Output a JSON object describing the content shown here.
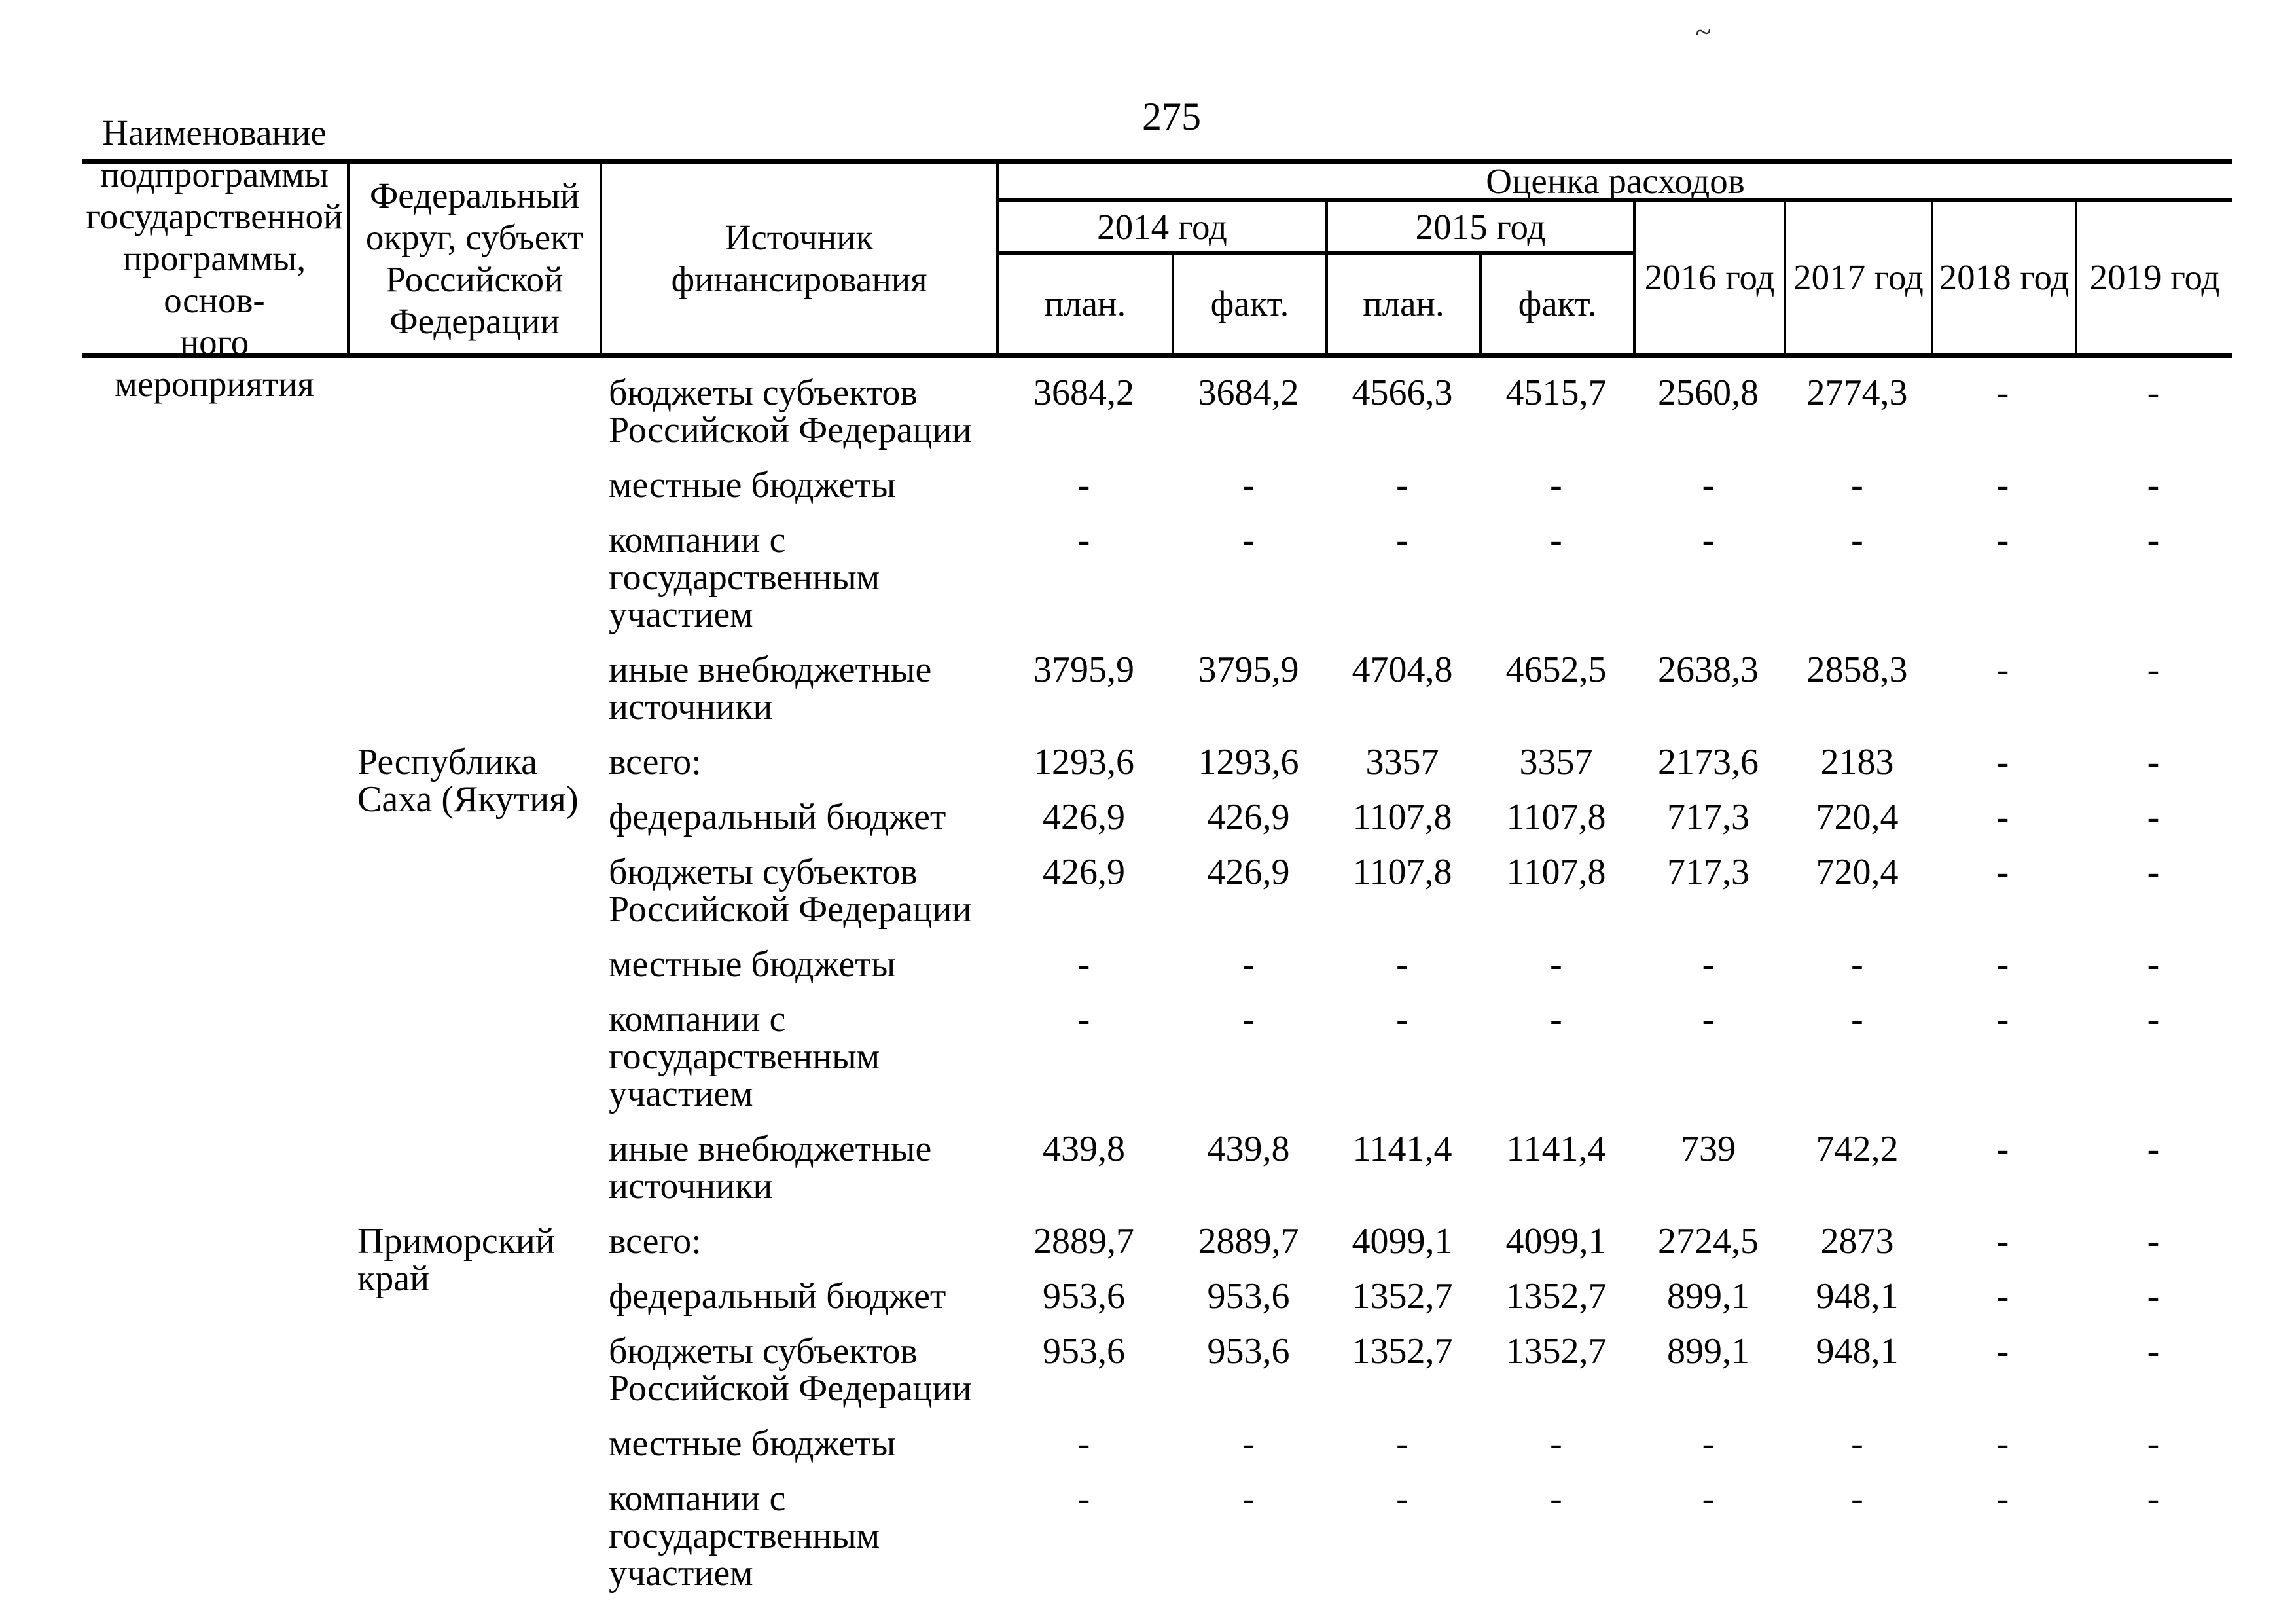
{
  "page": {
    "number": "275"
  },
  "artifacts": {
    "tilde": "~"
  },
  "table": {
    "header": {
      "program": "Наименование\nподпрограммы\nгосударственной\nпрограммы, основ-\nного мероприятия",
      "district": "Федеральный\nокруг, субъект\nРоссийской\nФедерации",
      "source": "Источник финансирования",
      "expenses": "Оценка расходов",
      "y2014": "2014 год",
      "y2015": "2015 год",
      "y2016": "2016 год",
      "y2017": "2017 год",
      "y2018": "2018 год",
      "y2019": "2019 год",
      "plan": "план.",
      "fact": "факт."
    },
    "groups": [
      {
        "subject": "",
        "rows": [
          {
            "source": "бюджеты субъектов\nРоссийской Федерации",
            "values": [
              "3684,2",
              "3684,2",
              "4566,3",
              "4515,7",
              "2560,8",
              "2774,3",
              "-",
              "-"
            ]
          },
          {
            "source": "местные бюджеты",
            "values": [
              "-",
              "-",
              "-",
              "-",
              "-",
              "-",
              "-",
              "-"
            ]
          },
          {
            "source": "компании с\nгосударственным участием",
            "values": [
              "-",
              "-",
              "-",
              "-",
              "-",
              "-",
              "-",
              "-"
            ]
          },
          {
            "source": "иные внебюджетные\nисточники",
            "values": [
              "3795,9",
              "3795,9",
              "4704,8",
              "4652,5",
              "2638,3",
              "2858,3",
              "-",
              "-"
            ]
          }
        ]
      },
      {
        "subject": "Республика\nСаха (Якутия)",
        "rows": [
          {
            "source": "всего:",
            "values": [
              "1293,6",
              "1293,6",
              "3357",
              "3357",
              "2173,6",
              "2183",
              "-",
              "-"
            ]
          },
          {
            "source": "федеральный бюджет",
            "values": [
              "426,9",
              "426,9",
              "1107,8",
              "1107,8",
              "717,3",
              "720,4",
              "-",
              "-"
            ]
          },
          {
            "source": "бюджеты субъектов\nРоссийской Федерации",
            "values": [
              "426,9",
              "426,9",
              "1107,8",
              "1107,8",
              "717,3",
              "720,4",
              "-",
              "-"
            ]
          },
          {
            "source": "местные бюджеты",
            "values": [
              "-",
              "-",
              "-",
              "-",
              "-",
              "-",
              "-",
              "-"
            ]
          },
          {
            "source": "компании с\nгосударственным участием",
            "values": [
              "-",
              "-",
              "-",
              "-",
              "-",
              "-",
              "-",
              "-"
            ]
          },
          {
            "source": "иные внебюджетные\nисточники",
            "values": [
              "439,8",
              "439,8",
              "1141,4",
              "1141,4",
              "739",
              "742,2",
              "-",
              "-"
            ]
          }
        ]
      },
      {
        "subject": "Приморский\nкрай",
        "rows": [
          {
            "source": "всего:",
            "values": [
              "2889,7",
              "2889,7",
              "4099,1",
              "4099,1",
              "2724,5",
              "2873",
              "-",
              "-"
            ]
          },
          {
            "source": "федеральный бюджет",
            "values": [
              "953,6",
              "953,6",
              "1352,7",
              "1352,7",
              "899,1",
              "948,1",
              "-",
              "-"
            ]
          },
          {
            "source": "бюджеты субъектов\nРоссийской Федерации",
            "values": [
              "953,6",
              "953,6",
              "1352,7",
              "1352,7",
              "899,1",
              "948,1",
              "-",
              "-"
            ]
          },
          {
            "source": "местные бюджеты",
            "values": [
              "-",
              "-",
              "-",
              "-",
              "-",
              "-",
              "-",
              "-"
            ]
          },
          {
            "source": "компании с\nгосударственным участием",
            "values": [
              "-",
              "-",
              "-",
              "-",
              "-",
              "-",
              "-",
              "-"
            ]
          }
        ]
      }
    ]
  }
}
